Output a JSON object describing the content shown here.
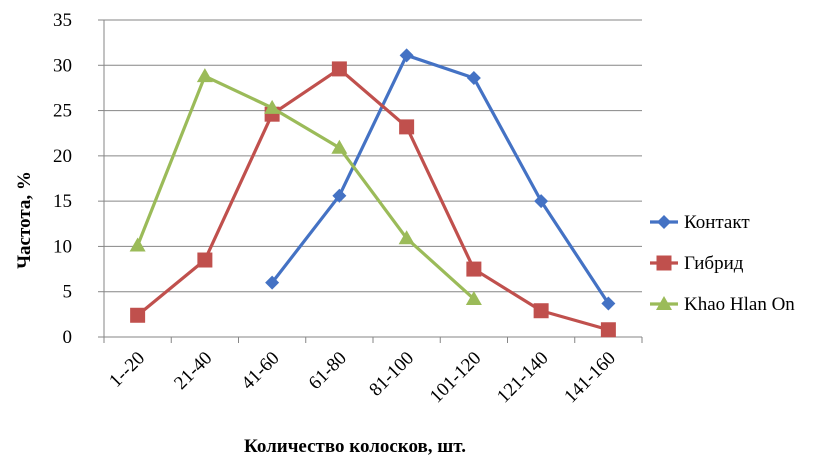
{
  "chart_data": {
    "type": "line",
    "title": "",
    "xlabel": "Количество колосков, шт.",
    "ylabel": "Частота, %",
    "categories": [
      "1--20",
      "21-40",
      "41-60",
      "61-80",
      "81-100",
      "101-120",
      "121-140",
      "141-160"
    ],
    "ylim": [
      0,
      35
    ],
    "yticks": [
      "0",
      "5",
      "10",
      "15",
      "20",
      "25",
      "30",
      "35"
    ],
    "grid": true,
    "legend_position": "right",
    "series": [
      {
        "name": "Контакт",
        "color": "#4472C4",
        "marker": "diamond",
        "values": [
          null,
          null,
          6.0,
          15.6,
          31.1,
          28.6,
          15.0,
          3.7
        ]
      },
      {
        "name": "Гибрид",
        "color": "#C0504D",
        "marker": "square",
        "values": [
          2.4,
          8.5,
          24.6,
          29.6,
          23.2,
          7.5,
          2.9,
          0.8
        ]
      },
      {
        "name": "Khao Hlan On",
        "color": "#9BBB59",
        "marker": "triangle",
        "values": [
          10.1,
          28.8,
          25.3,
          20.9,
          10.9,
          4.2,
          null,
          null
        ]
      }
    ]
  }
}
